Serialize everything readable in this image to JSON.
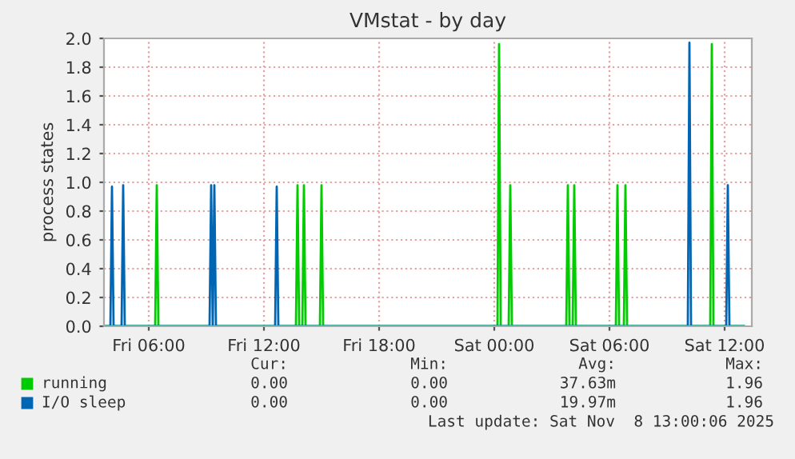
{
  "chart_data": {
    "type": "line",
    "title": "VMstat - by day",
    "ylabel": "process states",
    "xlim": [
      "2025-11-07T03:40",
      "2025-11-08T13:25"
    ],
    "ylim": [
      0,
      2.0
    ],
    "xticks": [
      {
        "value": "2025-11-07T06:00",
        "label": "Fri 06:00"
      },
      {
        "value": "2025-11-07T12:00",
        "label": "Fri 12:00"
      },
      {
        "value": "2025-11-07T18:00",
        "label": "Fri 18:00"
      },
      {
        "value": "2025-11-08T00:00",
        "label": "Sat 00:00"
      },
      {
        "value": "2025-11-08T06:00",
        "label": "Sat 06:00"
      },
      {
        "value": "2025-11-08T12:00",
        "label": "Sat 12:00"
      }
    ],
    "yticks": [
      {
        "value": 0,
        "label": "0.0"
      },
      {
        "value": 0.2,
        "label": "0.2"
      },
      {
        "value": 0.4,
        "label": "0.4"
      },
      {
        "value": 0.6,
        "label": "0.6"
      },
      {
        "value": 0.8,
        "label": "0.8"
      },
      {
        "value": 1.0,
        "label": "1.0"
      },
      {
        "value": 1.2,
        "label": "1.2"
      },
      {
        "value": 1.4,
        "label": "1.4"
      },
      {
        "value": 1.6,
        "label": "1.6"
      },
      {
        "value": 1.8,
        "label": "1.8"
      },
      {
        "value": 2.0,
        "label": "2.0"
      }
    ],
    "grid": true,
    "legend": "bottom",
    "marker": "none",
    "line_style": "solid",
    "series": [
      {
        "name": "running",
        "color": "#00cc00",
        "x": [
          "2025-11-07T03:40",
          "2025-11-07T06:20",
          "2025-11-07T06:25",
          "2025-11-07T06:30",
          "2025-11-07T13:40",
          "2025-11-07T13:45",
          "2025-11-07T13:50",
          "2025-11-07T14:00",
          "2025-11-07T14:05",
          "2025-11-07T14:10",
          "2025-11-07T14:55",
          "2025-11-07T15:00",
          "2025-11-07T15:05",
          "2025-11-08T00:10",
          "2025-11-08T00:15",
          "2025-11-08T00:20",
          "2025-11-08T00:45",
          "2025-11-08T00:50",
          "2025-11-08T00:55",
          "2025-11-08T03:45",
          "2025-11-08T03:50",
          "2025-11-08T03:55",
          "2025-11-08T04:05",
          "2025-11-08T04:10",
          "2025-11-08T04:15",
          "2025-11-08T06:20",
          "2025-11-08T06:25",
          "2025-11-08T06:30",
          "2025-11-08T06:45",
          "2025-11-08T06:50",
          "2025-11-08T06:55",
          "2025-11-08T11:15",
          "2025-11-08T11:20",
          "2025-11-08T11:25",
          "2025-11-08T13:00"
        ],
        "values": [
          0,
          0,
          0.98,
          0,
          0,
          0.98,
          0,
          0,
          0.98,
          0,
          0,
          0.98,
          0,
          0,
          1.96,
          0,
          0,
          0.98,
          0,
          0,
          0.98,
          0,
          0,
          0.98,
          0,
          0,
          0.98,
          0,
          0,
          0.98,
          0,
          0,
          1.96,
          0,
          0
        ]
      },
      {
        "name": "I/O sleep",
        "color": "#0066b3",
        "x": [
          "2025-11-07T03:40",
          "2025-11-07T04:00",
          "2025-11-07T04:05",
          "2025-11-07T04:10",
          "2025-11-07T04:35",
          "2025-11-07T04:40",
          "2025-11-07T04:45",
          "2025-11-07T09:10",
          "2025-11-07T09:15",
          "2025-11-07T09:20",
          "2025-11-07T09:25",
          "2025-11-07T09:30",
          "2025-11-07T12:35",
          "2025-11-07T12:40",
          "2025-11-07T12:45",
          "2025-11-08T10:05",
          "2025-11-08T10:10",
          "2025-11-08T10:15",
          "2025-11-08T12:05",
          "2025-11-08T12:10",
          "2025-11-08T12:15",
          "2025-11-08T13:00"
        ],
        "values": [
          0,
          0,
          0.97,
          0,
          0,
          0.98,
          0,
          0,
          0.98,
          0,
          0.98,
          0,
          0,
          0.97,
          0,
          0,
          1.97,
          0,
          0,
          0.98,
          0,
          0
        ]
      }
    ],
    "annotations": [
      "Cur:",
      "Min:",
      "Avg:",
      "Max:",
      "0.00",
      "0.00",
      "37.63m",
      "1.96",
      "0.00",
      "0.00",
      "19.97m",
      "1.96",
      "Last update: Sat Nov  8 13:00:06 2025"
    ]
  }
}
